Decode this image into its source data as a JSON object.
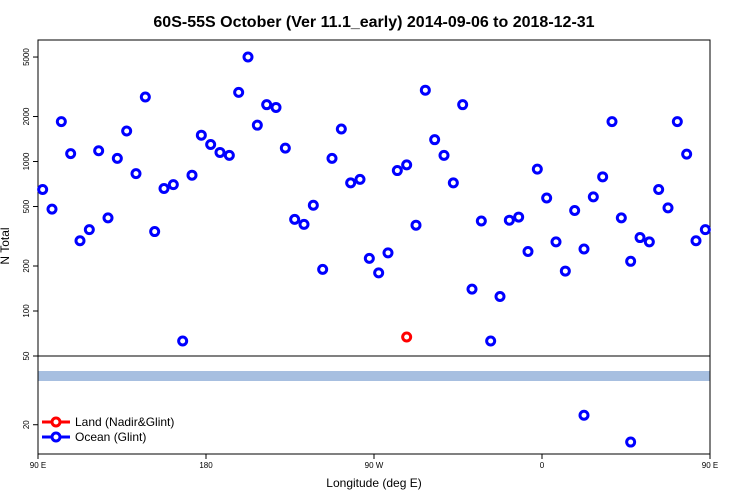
{
  "chart_data": {
    "type": "scatter",
    "title": "60S-55S October (Ver 11.1_early)   2014-09-06 to 2018-12-31",
    "xlabel": "Longitude (deg E)",
    "ylabel": "N Total",
    "xlim": [
      90,
      450
    ],
    "x_ticks": [
      {
        "value": 90,
        "label": "90 E"
      },
      {
        "value": 180,
        "label": "180"
      },
      {
        "value": 270,
        "label": "90 W"
      },
      {
        "value": 360,
        "label": "0"
      },
      {
        "value": 450,
        "label": "90 E"
      },
      {
        "value": 540,
        "label": "180"
      }
    ],
    "upper_panel": {
      "scale": "log",
      "ylim": [
        50,
        6500
      ],
      "y_ticks": [
        50,
        100,
        200,
        500,
        1000,
        2000,
        5000
      ]
    },
    "lower_panel": {
      "scale": "log",
      "ylim": [
        13,
        55
      ],
      "y_ticks": [
        20,
        50
      ],
      "band_color": "#a7bfe0"
    },
    "series": [
      {
        "name": "Land (Nadir&Glint)",
        "color": "#ff0000",
        "upper": [
          [
            287.5,
            67
          ]
        ],
        "lower": []
      },
      {
        "name": "Ocean (Glint)",
        "color": "#0000ff",
        "upper": [
          [
            92.5,
            650
          ],
          [
            97.5,
            480
          ],
          [
            102.5,
            1850
          ],
          [
            107.5,
            1130
          ],
          [
            112.5,
            295
          ],
          [
            117.5,
            350
          ],
          [
            122.5,
            1180
          ],
          [
            127.5,
            420
          ],
          [
            132.5,
            1050
          ],
          [
            137.5,
            1600
          ],
          [
            142.5,
            830
          ],
          [
            147.5,
            2700
          ],
          [
            152.5,
            340
          ],
          [
            157.5,
            660
          ],
          [
            162.5,
            700
          ],
          [
            167.5,
            63
          ],
          [
            172.5,
            810
          ],
          [
            177.5,
            1500
          ],
          [
            182.5,
            1300
          ],
          [
            187.5,
            1150
          ],
          [
            192.5,
            1100
          ],
          [
            197.5,
            2900
          ],
          [
            202.5,
            5000
          ],
          [
            207.5,
            1750
          ],
          [
            212.5,
            2400
          ],
          [
            217.5,
            2300
          ],
          [
            222.5,
            1230
          ],
          [
            227.5,
            410
          ],
          [
            232.5,
            380
          ],
          [
            237.5,
            510
          ],
          [
            242.5,
            190
          ],
          [
            247.5,
            1050
          ],
          [
            252.5,
            1650
          ],
          [
            257.5,
            720
          ],
          [
            262.5,
            760
          ],
          [
            267.5,
            225
          ],
          [
            272.5,
            180
          ],
          [
            277.5,
            245
          ],
          [
            282.5,
            870
          ],
          [
            287.5,
            950
          ],
          [
            292.5,
            375
          ],
          [
            297.5,
            3000
          ],
          [
            302.5,
            1400
          ],
          [
            307.5,
            1100
          ],
          [
            312.5,
            720
          ],
          [
            317.5,
            2400
          ],
          [
            322.5,
            140
          ],
          [
            327.5,
            400
          ],
          [
            332.5,
            63
          ],
          [
            337.5,
            125
          ],
          [
            342.5,
            405
          ],
          [
            347.5,
            425
          ],
          [
            352.5,
            250
          ],
          [
            357.5,
            890
          ],
          [
            362.5,
            570
          ],
          [
            367.5,
            290
          ],
          [
            372.5,
            185
          ],
          [
            377.5,
            470
          ],
          [
            382.5,
            260
          ],
          [
            387.5,
            580
          ],
          [
            392.5,
            790
          ],
          [
            397.5,
            1850
          ],
          [
            402.5,
            420
          ],
          [
            407.5,
            215
          ],
          [
            412.5,
            310
          ],
          [
            417.5,
            290
          ],
          [
            422.5,
            650
          ],
          [
            427.5,
            490
          ],
          [
            432.5,
            1850
          ],
          [
            437.5,
            1120
          ],
          [
            442.5,
            295
          ],
          [
            447.5,
            350
          ],
          [
            452.5,
            1170
          ],
          [
            457.5,
            420
          ],
          [
            462.5,
            1050
          ],
          [
            467.5,
            1600
          ],
          [
            472.5,
            830
          ],
          [
            477.5,
            2650
          ],
          [
            482.5,
            335
          ],
          [
            487.5,
            660
          ],
          [
            492.5,
            710
          ],
          [
            497.5,
            63
          ],
          [
            502.5,
            820
          ],
          [
            507.5,
            1500
          ],
          [
            512.5,
            1300
          ]
        ],
        "lower": [
          [
            382.5,
            23
          ],
          [
            407.5,
            15.5
          ]
        ]
      }
    ],
    "legend": {
      "placement": "bottom-left",
      "entries": [
        "Land (Nadir&Glint)",
        "Ocean (Glint)"
      ]
    }
  }
}
